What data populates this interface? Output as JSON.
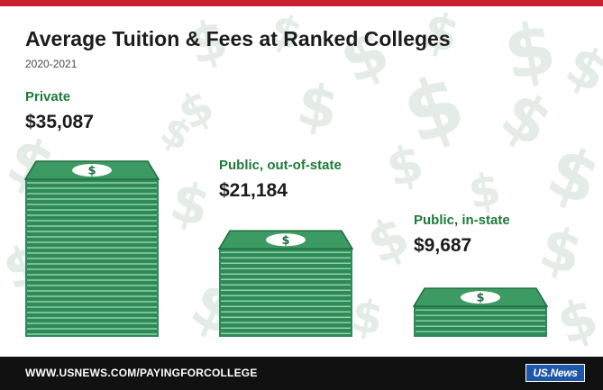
{
  "colors": {
    "top_bar": "#c8202f",
    "category_label": "#1e7a3a",
    "bill_body": "#2e8b57",
    "bill_line": "#a8dcc0",
    "bill_top": "#3c9a63",
    "bill_top_edge": "#1f6e3f",
    "bill_emblem": "#ffffff",
    "background_symbol": "#e4ece7",
    "footer": "#111111",
    "logo": "#1e57a8"
  },
  "chart_data": {
    "type": "bar",
    "title": "Average Tuition & Fees at Ranked Colleges",
    "subtitle": "2020-2021",
    "categories": [
      "Private",
      "Public, out-of-state",
      "Public, in-state"
    ],
    "values": [
      35087,
      21184,
      9687
    ],
    "value_labels": [
      "$35,087",
      "$21,184",
      "$9,687"
    ],
    "unit": "USD",
    "mark": "stack-of-dollar-bills",
    "bar_icon": "dollar-bill",
    "xlabel": "",
    "ylabel": "",
    "grid": false,
    "legend": "none"
  },
  "footer": {
    "url": "WWW.USNEWS.COM/PAYINGFORCOLLEGE",
    "logo_text": "US.News"
  },
  "background_icon": "dollar-sign-icon"
}
